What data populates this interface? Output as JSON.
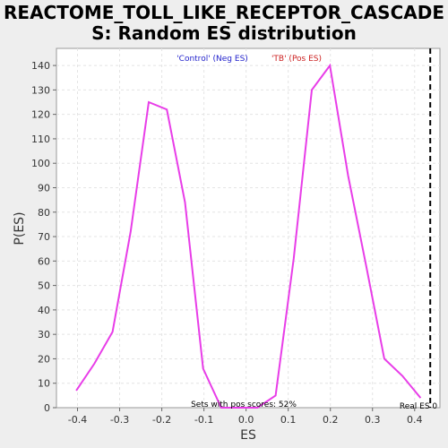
{
  "chart_data": {
    "type": "line",
    "title_line1": "REACTOME_TOLL_LIKE_RECEPTOR_CASCADE",
    "title_line2": "S: Random ES distribution",
    "xlabel": "ES",
    "ylabel": "P(ES)",
    "xlim": [
      -0.45,
      0.46
    ],
    "ylim": [
      0,
      147
    ],
    "x_ticks": [
      -0.4,
      -0.3,
      -0.2,
      -0.1,
      0.0,
      0.1,
      0.2,
      0.3,
      0.4
    ],
    "x_tick_labels": [
      "-0.4",
      "-0.3",
      "-0.2",
      "-0.1",
      "0.0",
      "0.1",
      "0.2",
      "0.3",
      "0.4"
    ],
    "y_ticks": [
      0,
      10,
      20,
      30,
      40,
      50,
      60,
      70,
      80,
      90,
      100,
      110,
      120,
      130,
      140
    ],
    "y_tick_labels": [
      "0",
      "10",
      "20",
      "30",
      "40",
      "50",
      "60",
      "70",
      "80",
      "90",
      "100",
      "110",
      "120",
      "130",
      "140"
    ],
    "grid": true,
    "series": [
      {
        "color": "#e83de8",
        "x": [
          -0.403,
          -0.36,
          -0.317,
          -0.274,
          -0.231,
          -0.188,
          -0.145,
          -0.102,
          -0.059,
          -0.016,
          0.027,
          0.07,
          0.113,
          0.156,
          0.199,
          0.242,
          0.285,
          0.328,
          0.371,
          0.414
        ],
        "y": [
          7,
          18,
          31,
          72,
          125,
          122,
          84,
          16,
          0,
          0,
          0,
          5,
          61,
          130,
          140,
          95,
          58,
          20,
          13,
          4
        ],
        "x_prefix": [
          -0.403,
          -0.36,
          -0.317,
          -0.274,
          -0.231,
          -0.188,
          -0.145,
          -0.102,
          -0.059
        ]
      }
    ],
    "legend": {
      "placement": "top-center",
      "items": [
        {
          "label": "'Control' (Neg ES)",
          "color": "#2222cc"
        },
        {
          "label": "'TB' (Pos ES)",
          "color": "#cc2222"
        }
      ]
    },
    "annotations": {
      "pos_scores": "Sets with pos scores: 52%",
      "real_es_label": "Real ES 0",
      "real_es_x": 0.437
    }
  }
}
